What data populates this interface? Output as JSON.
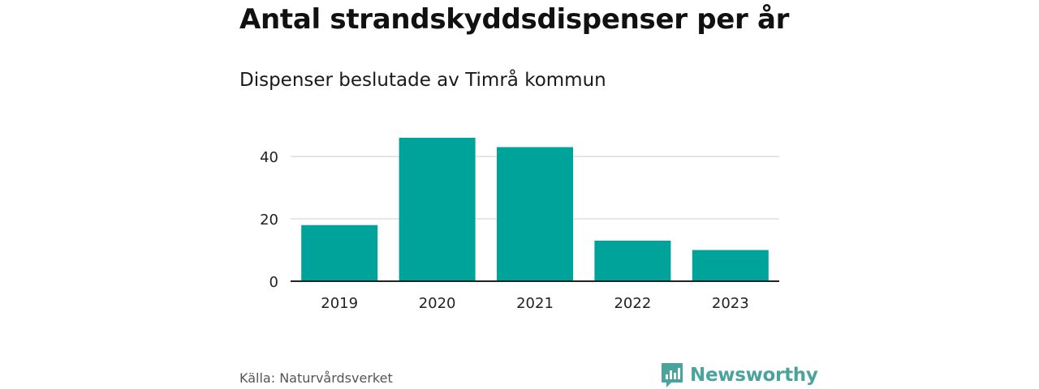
{
  "title": "Antal strandskyddsdispenser per år",
  "subtitle": "Dispenser beslutade av Timrå kommun",
  "source": "Källa: Naturvårdsverket",
  "brand": {
    "name": "Newsworthy",
    "icon": "newsworthy-logo-icon",
    "color": "#4aa39c"
  },
  "chart_data": {
    "type": "bar",
    "categories": [
      "2019",
      "2020",
      "2021",
      "2022",
      "2023"
    ],
    "values": [
      18,
      46,
      43,
      13,
      10
    ],
    "yticks": [
      0,
      20,
      40
    ],
    "ylim": [
      0,
      46
    ],
    "grid": true,
    "bar_color": "#00a39a",
    "xlabel": "",
    "ylabel": ""
  }
}
